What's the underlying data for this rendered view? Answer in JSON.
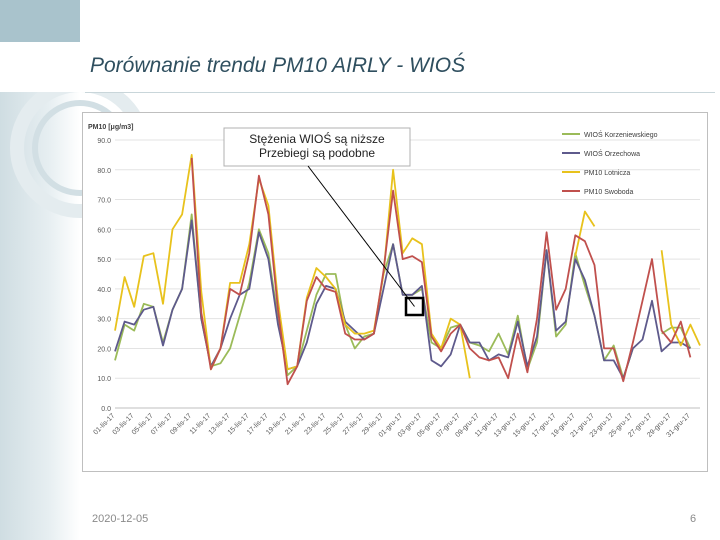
{
  "slide": {
    "title": "Porównanie trendu PM10 AIRLY - WIOŚ",
    "date": "2020-12-05",
    "page_number": "6"
  },
  "chart_data": {
    "type": "line",
    "ylabel": "PM10 [μg/m3]",
    "ylim": [
      0,
      90
    ],
    "yticks": [
      0.0,
      10.0,
      20.0,
      30.0,
      40.0,
      50.0,
      60.0,
      70.0,
      80.0,
      90.0
    ],
    "grid": true,
    "legend_position": "top-right",
    "x": [
      "01-lis-17",
      "02-lis-17",
      "03-lis-17",
      "04-lis-17",
      "05-lis-17",
      "06-lis-17",
      "07-lis-17",
      "08-lis-17",
      "09-lis-17",
      "10-lis-17",
      "11-lis-17",
      "12-lis-17",
      "13-lis-17",
      "14-lis-17",
      "15-lis-17",
      "16-lis-17",
      "17-lis-17",
      "18-lis-17",
      "19-lis-17",
      "20-lis-17",
      "21-lis-17",
      "22-lis-17",
      "23-lis-17",
      "24-lis-17",
      "25-lis-17",
      "26-lis-17",
      "27-lis-17",
      "28-lis-17",
      "29-lis-17",
      "30-lis-17",
      "01-gru-17",
      "02-gru-17",
      "03-gru-17",
      "04-gru-17",
      "05-gru-17",
      "06-gru-17",
      "07-gru-17",
      "08-gru-17",
      "09-gru-17",
      "10-gru-17",
      "11-gru-17",
      "12-gru-17",
      "13-gru-17",
      "14-gru-17",
      "15-gru-17",
      "16-gru-17",
      "17-gru-17",
      "18-gru-17",
      "19-gru-17",
      "20-gru-17",
      "21-gru-17",
      "22-gru-17",
      "23-gru-17",
      "24-gru-17",
      "25-gru-17",
      "26-gru-17",
      "27-gru-17",
      "28-gru-17",
      "29-gru-17",
      "30-gru-17",
      "31-gru-17",
      "01-sty-18"
    ],
    "xtick_labels": [
      "01-lis-17",
      "03-lis-17",
      "05-lis-17",
      "07-lis-17",
      "09-lis-17",
      "11-lis-17",
      "13-lis-17",
      "15-lis-17",
      "17-lis-17",
      "19-lis-17",
      "21-lis-17",
      "23-lis-17",
      "25-lis-17",
      "27-lis-17",
      "29-lis-17",
      "01-gru-17",
      "03-gru-17",
      "05-gru-17",
      "07-gru-17",
      "09-gru-17",
      "11-gru-17",
      "13-gru-17",
      "15-gru-17",
      "17-gru-17",
      "19-gru-17",
      "21-gru-17",
      "23-gru-17",
      "25-gru-17",
      "27-gru-17",
      "29-gru-17",
      "31-gru-17"
    ],
    "series": [
      {
        "name": "WIOŚ Korzeniewskiego",
        "color": "#9bbb59",
        "values": [
          16,
          28,
          26,
          35,
          34,
          22,
          33,
          40,
          65,
          30,
          14,
          15,
          20,
          31,
          42,
          60,
          52,
          30,
          11,
          14,
          26,
          38,
          45,
          45,
          28,
          20,
          24,
          25,
          45,
          55,
          38,
          38,
          40,
          22,
          20,
          27,
          28,
          22,
          21,
          19,
          25,
          18,
          31,
          13,
          22,
          53,
          24,
          28,
          52,
          41,
          31,
          16,
          21,
          10,
          20,
          null,
          null,
          25,
          27,
          27,
          20,
          null
        ]
      },
      {
        "name": "WIOŚ Orzechowa",
        "color": "#5e5a8c",
        "values": [
          19,
          29,
          28,
          33,
          34,
          21,
          33,
          40,
          63,
          30,
          14,
          20,
          30,
          38,
          40,
          59,
          50,
          28,
          13,
          14,
          22,
          35,
          41,
          40,
          29,
          26,
          23,
          25,
          40,
          55,
          38,
          38,
          41,
          16,
          14,
          18,
          28,
          22,
          22,
          16,
          18,
          17,
          29,
          14,
          24,
          53,
          26,
          29,
          50,
          43,
          31,
          16,
          16,
          10,
          20,
          23,
          36,
          19,
          22,
          22,
          20,
          null
        ]
      },
      {
        "name": "PM10 Lotnicza",
        "color": "#e8c21c",
        "values": [
          26,
          44,
          34,
          51,
          52,
          35,
          60,
          65,
          85,
          39,
          13,
          20,
          42,
          42,
          55,
          77,
          68,
          36,
          13,
          14,
          37,
          47,
          44,
          40,
          28,
          25,
          25,
          26,
          45,
          80,
          52,
          57,
          55,
          25,
          20,
          30,
          28,
          10,
          null,
          null,
          null,
          null,
          null,
          null,
          null,
          null,
          null,
          null,
          51,
          66,
          61,
          null,
          null,
          null,
          null,
          null,
          null,
          53,
          28,
          21,
          28,
          21
        ]
      },
      {
        "name": "PM10 Swoboda",
        "color": "#c0504d",
        "values": [
          20,
          null,
          null,
          null,
          null,
          null,
          null,
          null,
          84,
          32,
          13,
          20,
          40,
          38,
          52,
          78,
          65,
          33,
          8,
          14,
          36,
          44,
          40,
          39,
          25,
          23,
          23,
          25,
          46,
          73,
          50,
          51,
          49,
          24,
          19,
          25,
          28,
          20,
          17,
          16,
          17,
          10,
          25,
          12,
          30,
          59,
          33,
          40,
          58,
          56,
          48,
          20,
          20,
          9,
          22,
          36,
          50,
          26,
          22,
          29,
          17,
          null
        ]
      }
    ],
    "annotation": {
      "lines": [
        "Stężenia WIOŚ są niższe",
        "Przebiegi są podobne"
      ]
    }
  }
}
